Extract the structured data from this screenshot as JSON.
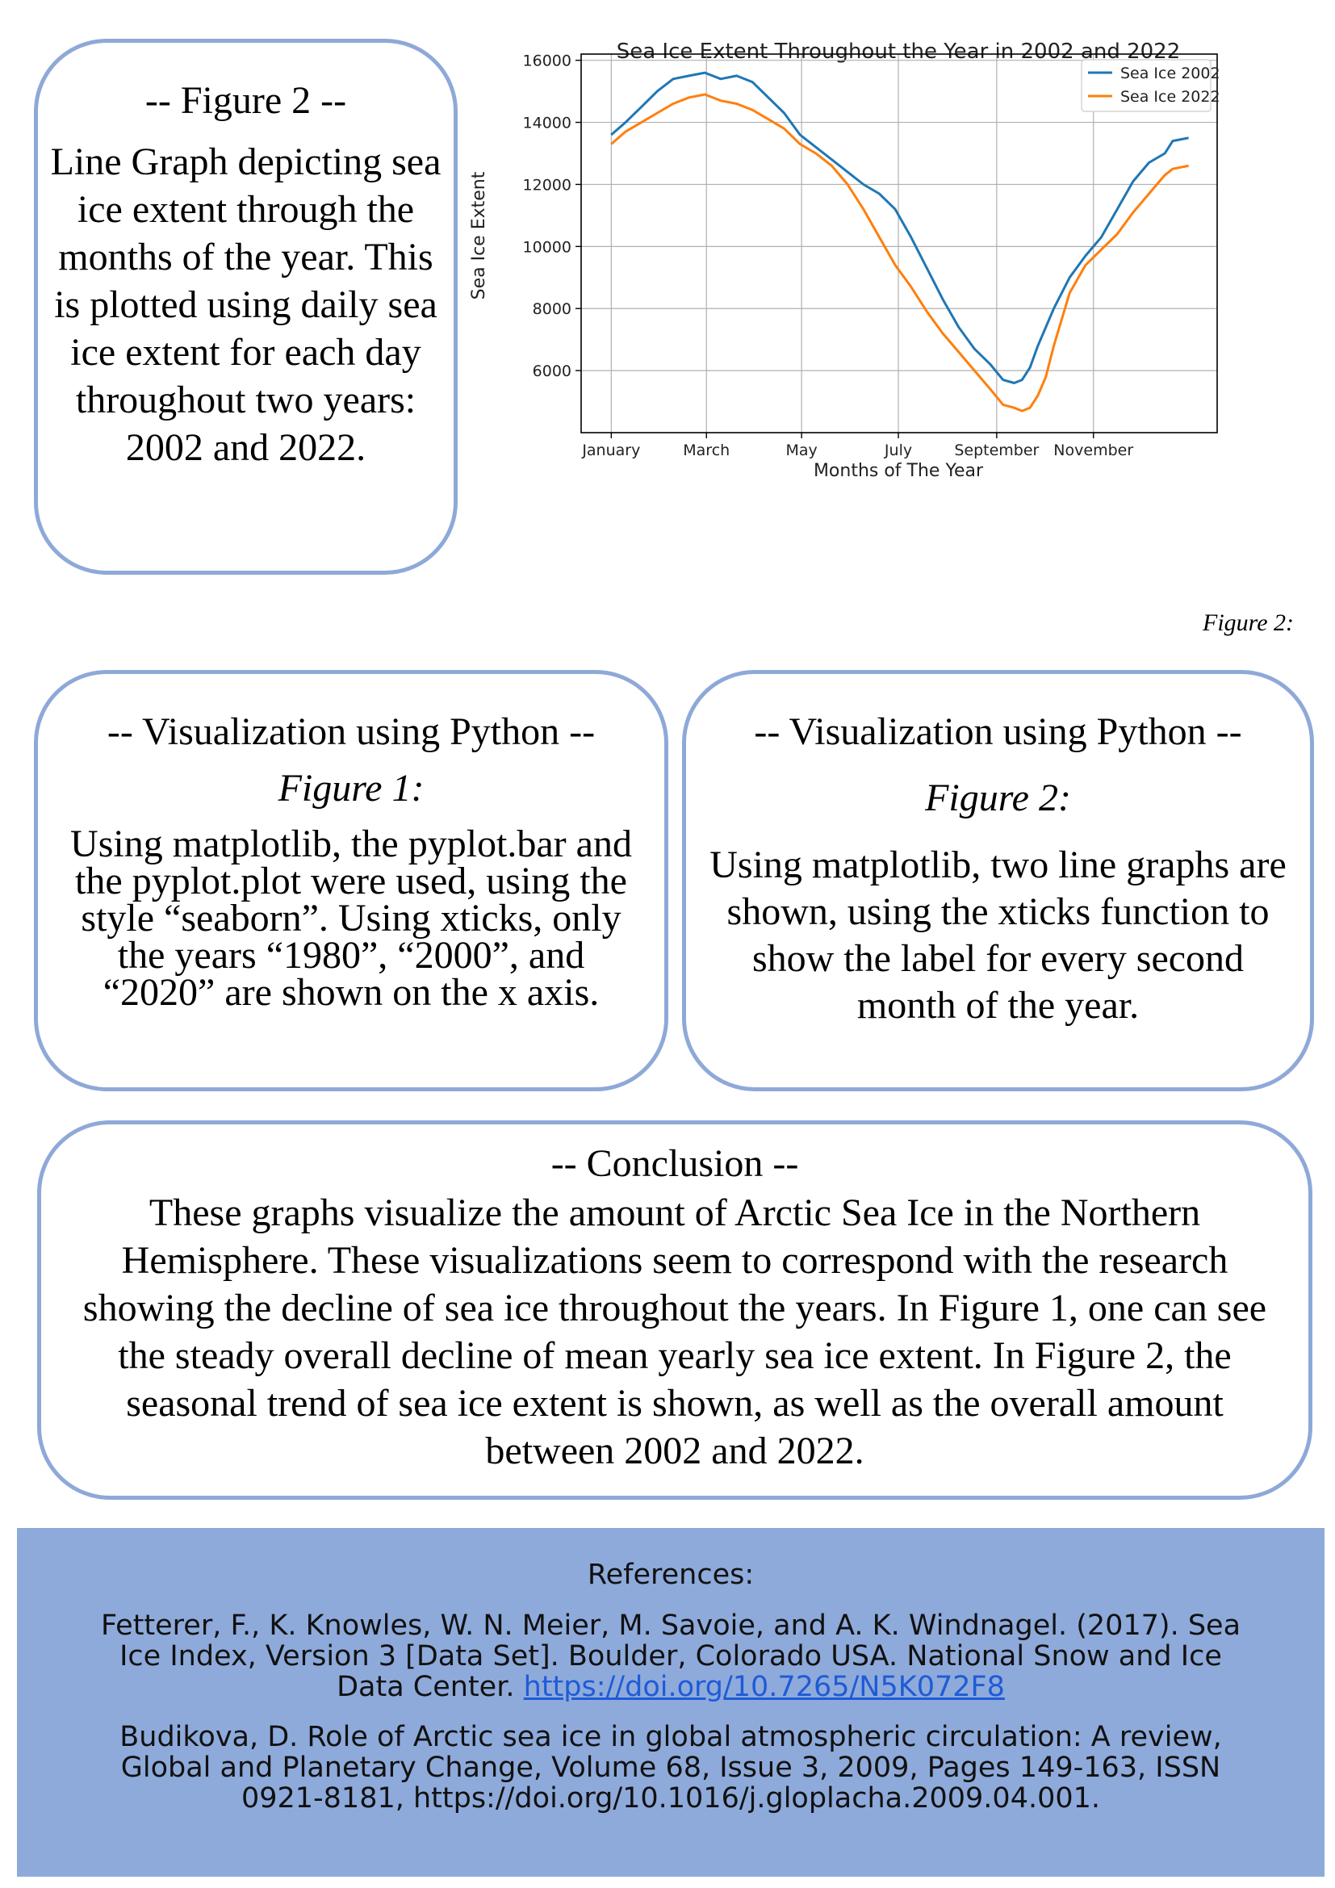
{
  "figure2_box": {
    "title": "-- Figure 2 --",
    "text": "Line Graph depicting sea ice extent through the months of the year. This is plotted using daily sea ice extent for each day throughout two years: 2002 and 2022."
  },
  "figure_caption": "Figure 2:",
  "viz1": {
    "title": "-- Visualization using Python --",
    "subtitle": "Figure 1:",
    "text": "Using matplotlib, the pyplot.bar and the pyplot.plot were used, using the style “seaborn”. Using xticks, only the years “1980”, “2000”, and “2020” are shown on the x axis."
  },
  "viz2": {
    "title": "-- Visualization using Python --",
    "subtitle": "Figure 2:",
    "text": "Using matplotlib, two line graphs are shown, using the xticks function to show the label for every second month of the year."
  },
  "conclusion": {
    "title": "-- Conclusion --",
    "text": "These graphs visualize the amount of Arctic Sea Ice in the Northern Hemisphere. These visualizations seem to correspond with the research showing the decline of sea ice throughout the years. In Figure 1, one can see the steady overall decline of mean yearly sea ice extent. In Figure 2, the seasonal trend of sea ice extent is shown, as well as the overall amount between 2002 and 2022."
  },
  "references": {
    "title": "References:",
    "ref1_text": "Fetterer, F., K. Knowles, W. N. Meier, M. Savoie, and A. K. Windnagel. (2017). Sea Ice Index, Version 3 [Data Set]. Boulder, Colorado USA. National Snow and Ice Data Center. ",
    "ref1_link": "https://doi.org/10.7265/N5K072F8",
    "ref2_text": "Budikova, D. Role of Arctic sea ice in global atmospheric circulation: A review, Global and Planetary Change, Volume 68, Issue 3, 2009, Pages 149-163, ISSN 0921-8181, https://doi.org/10.1016/j.gloplacha.2009.04.001."
  },
  "chart_data": {
    "type": "line",
    "title": "Sea Ice Extent Throughout the Year in 2002 and 2022",
    "xlabel": "Months of The Year",
    "ylabel": "Sea Ice Extent",
    "x_tick_labels": [
      "January",
      "March",
      "May",
      "July",
      "September",
      "November"
    ],
    "x_tick_days": [
      1,
      61,
      121,
      182,
      244,
      305
    ],
    "xlim": [
      -18,
      383
    ],
    "ylim": [
      4000,
      16200
    ],
    "y_ticks": [
      6000,
      8000,
      10000,
      12000,
      14000,
      16000
    ],
    "grid": true,
    "legend_position": "top-right",
    "series": [
      {
        "name": "Sea Ice 2002",
        "color": "#1f77b4",
        "day": [
          1,
          10,
          20,
          30,
          40,
          50,
          60,
          70,
          80,
          90,
          100,
          110,
          120,
          130,
          140,
          150,
          160,
          170,
          180,
          190,
          200,
          210,
          220,
          230,
          240,
          248,
          255,
          260,
          265,
          270,
          280,
          290,
          300,
          310,
          320,
          330,
          340,
          350,
          355,
          365
        ],
        "values": [
          13600,
          14000,
          14500,
          15000,
          15400,
          15500,
          15600,
          15400,
          15500,
          15300,
          14800,
          14300,
          13600,
          13200,
          12800,
          12400,
          12000,
          11700,
          11200,
          10300,
          9300,
          8300,
          7400,
          6700,
          6200,
          5700,
          5600,
          5700,
          6100,
          6800,
          8000,
          9000,
          9700,
          10300,
          11200,
          12100,
          12700,
          13000,
          13400,
          13500
        ]
      },
      {
        "name": "Sea Ice 2022",
        "color": "#ff7f0e",
        "day": [
          1,
          10,
          20,
          30,
          40,
          50,
          60,
          70,
          80,
          90,
          100,
          110,
          120,
          130,
          140,
          150,
          160,
          170,
          180,
          190,
          200,
          210,
          220,
          230,
          240,
          248,
          255,
          260,
          265,
          270,
          275,
          280,
          290,
          300,
          310,
          320,
          330,
          340,
          350,
          355,
          365
        ],
        "values": [
          13300,
          13700,
          14000,
          14300,
          14600,
          14800,
          14900,
          14700,
          14600,
          14400,
          14100,
          13800,
          13300,
          13000,
          12600,
          12000,
          11200,
          10300,
          9400,
          8700,
          7900,
          7200,
          6600,
          6000,
          5400,
          4900,
          4800,
          4700,
          4800,
          5200,
          5800,
          6800,
          8500,
          9400,
          9900,
          10400,
          11100,
          11700,
          12300,
          12500,
          12600
        ]
      }
    ]
  }
}
